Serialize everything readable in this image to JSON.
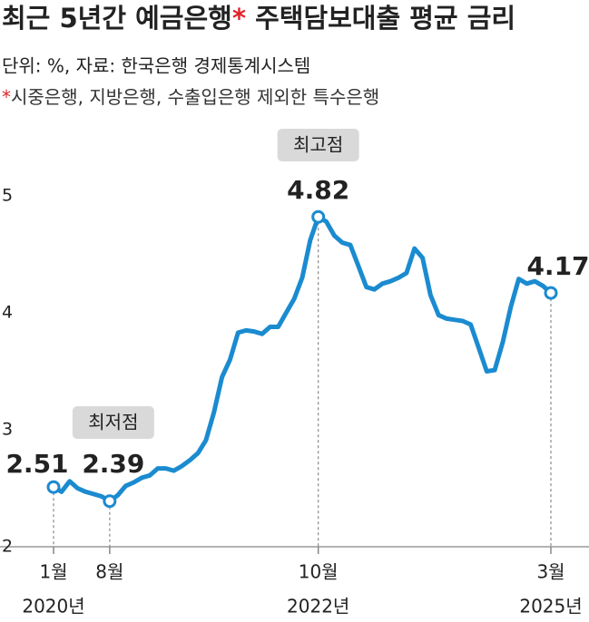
{
  "chart_data": {
    "type": "line",
    "title_parts": [
      "최근 5년간 예금은행",
      "*",
      " 주택담보대출 평균 금리"
    ],
    "subtitle": "단위: %, 자료: 한국은행 경제통계시스템",
    "note_parts": [
      "*",
      "시중은행, 지방은행, 수출입은행 제외한 특수은행"
    ],
    "categories": [
      "1월",
      null,
      null,
      null,
      null,
      null,
      null,
      "8월",
      null,
      null,
      null,
      null,
      null,
      null,
      null,
      null,
      null,
      null,
      null,
      null,
      null,
      null,
      null,
      null,
      null,
      null,
      null,
      null,
      null,
      null,
      null,
      null,
      null,
      "10월",
      null,
      null,
      null,
      null,
      null,
      null,
      null,
      null,
      null,
      null,
      null,
      null,
      null,
      null,
      null,
      null,
      null,
      null,
      null,
      null,
      null,
      null,
      null,
      null,
      null,
      null,
      null,
      null,
      "3월"
    ],
    "category_years": [
      "2020년",
      null,
      null,
      null,
      null,
      null,
      null,
      null,
      null,
      null,
      null,
      null,
      null,
      null,
      null,
      null,
      null,
      null,
      null,
      null,
      null,
      null,
      null,
      null,
      null,
      null,
      null,
      null,
      null,
      null,
      null,
      null,
      null,
      "2022년",
      null,
      null,
      null,
      null,
      null,
      null,
      null,
      null,
      null,
      null,
      null,
      null,
      null,
      null,
      null,
      null,
      null,
      null,
      null,
      null,
      null,
      null,
      null,
      null,
      null,
      null,
      null,
      null,
      "2025년"
    ],
    "series": [
      {
        "name": "평균 금리",
        "color": "#1b8bd0",
        "values": [
          2.51,
          2.47,
          2.56,
          2.5,
          2.47,
          2.45,
          2.43,
          2.39,
          2.44,
          2.52,
          2.55,
          2.59,
          2.61,
          2.67,
          2.67,
          2.65,
          2.69,
          2.74,
          2.8,
          2.91,
          3.15,
          3.45,
          3.6,
          3.83,
          3.85,
          3.84,
          3.82,
          3.88,
          3.88,
          4.0,
          4.12,
          4.3,
          4.62,
          4.82,
          4.78,
          4.66,
          4.6,
          4.58,
          4.4,
          4.22,
          4.2,
          4.25,
          4.27,
          4.3,
          4.34,
          4.55,
          4.47,
          4.15,
          3.98,
          3.95,
          3.94,
          3.93,
          3.9,
          3.7,
          3.5,
          3.51,
          3.75,
          4.05,
          4.29,
          4.25,
          4.27,
          4.23,
          4.17
        ]
      }
    ],
    "annotations": [
      {
        "text": "최저점",
        "category": "8월"
      },
      {
        "text": "최고점",
        "category": "10월"
      }
    ],
    "ylim": [
      2,
      5.3
    ],
    "yticks": [
      2,
      3,
      4,
      5
    ],
    "grid": false
  }
}
